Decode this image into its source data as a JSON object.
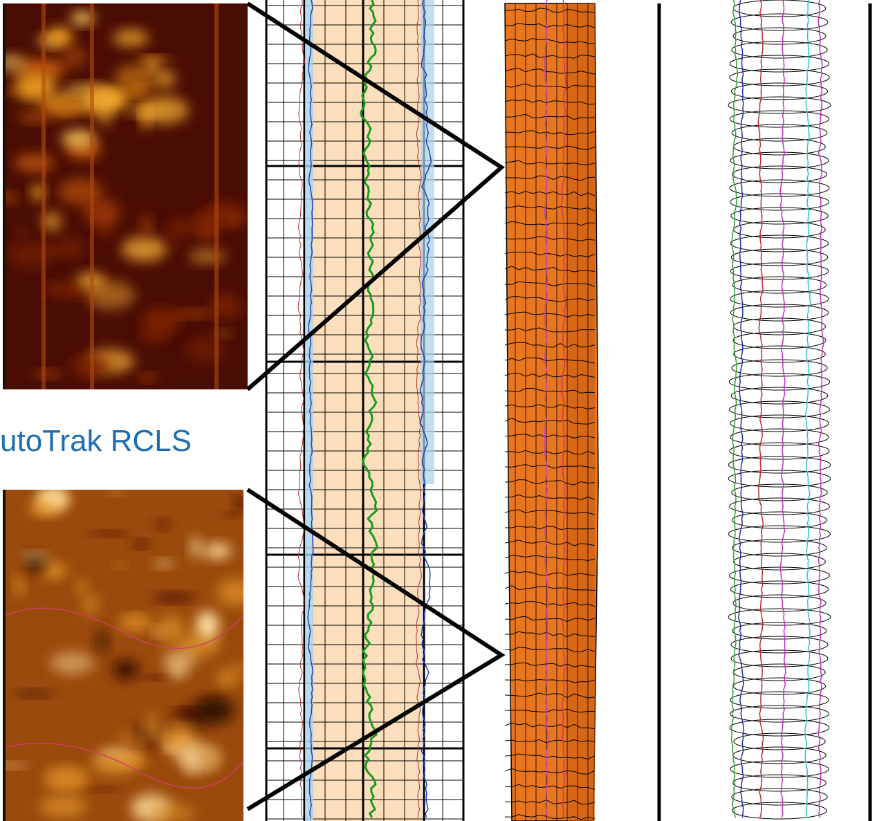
{
  "label": "utoTrak RCLS"
}
